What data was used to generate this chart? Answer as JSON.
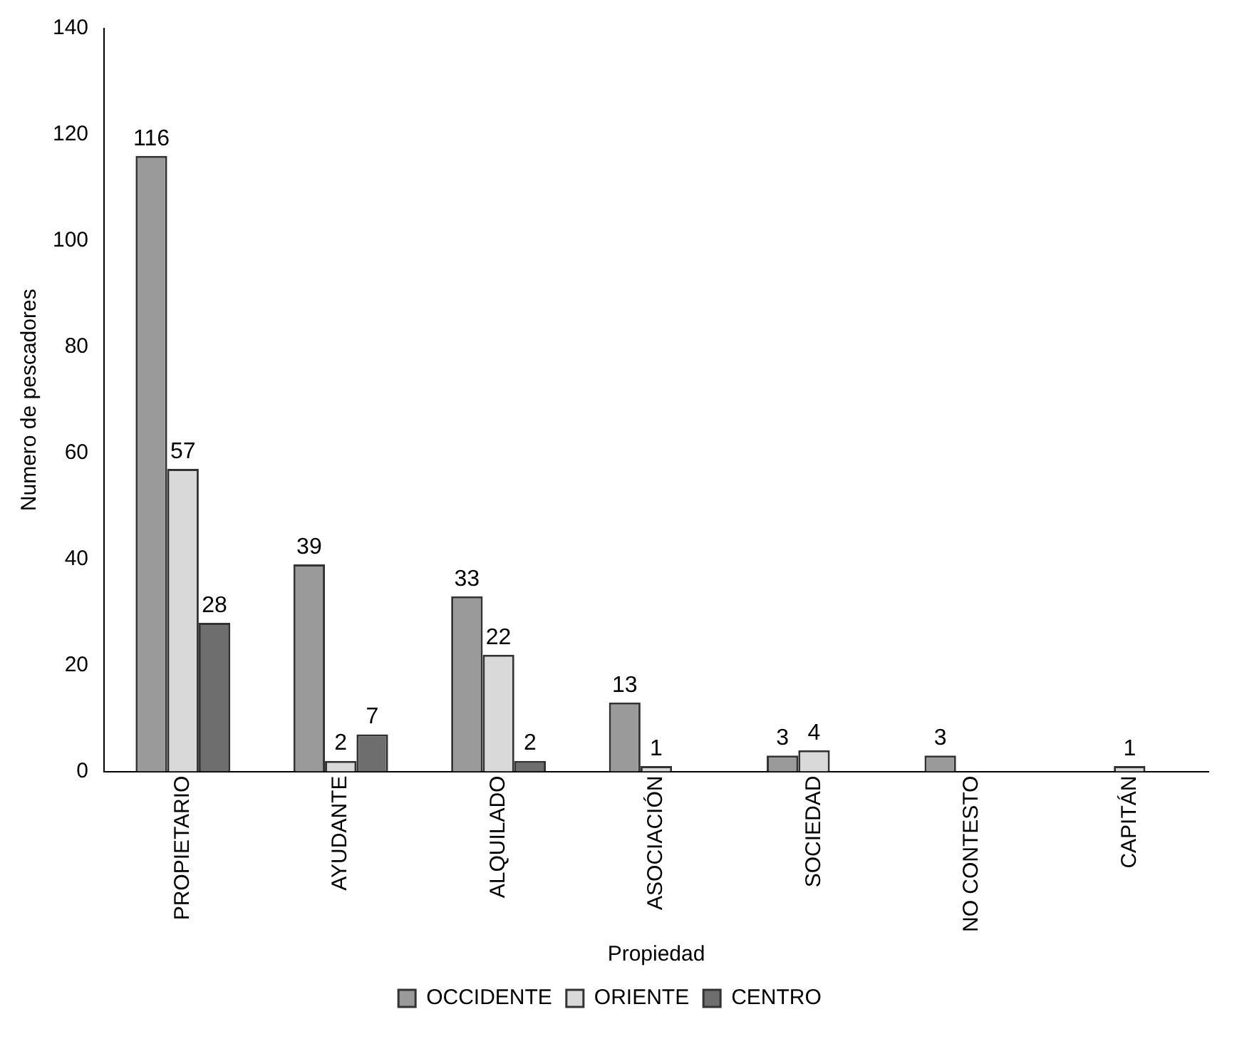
{
  "chart_data": {
    "type": "bar",
    "xlabel": "Propiedad",
    "ylabel": "Numero de pescadores",
    "categories": [
      "PROPIETARIO",
      "AYUDANTE",
      "ALQUILADO",
      "ASOCIACIÓN",
      "SOCIEDAD",
      "NO CONTESTO",
      "CAPITÁN"
    ],
    "series": [
      {
        "name": "OCCIDENTE",
        "color": "#9a9a9a",
        "values": [
          116,
          39,
          33,
          13,
          3,
          3,
          null
        ]
      },
      {
        "name": "ORIENTE",
        "color": "#d9d9d9",
        "values": [
          57,
          2,
          22,
          1,
          4,
          null,
          1
        ]
      },
      {
        "name": "CENTRO",
        "color": "#6e6e6e",
        "values": [
          28,
          7,
          2,
          null,
          null,
          null,
          null
        ]
      }
    ],
    "ylim": [
      0,
      140
    ],
    "yticks": [
      0,
      20,
      40,
      60,
      80,
      100,
      120,
      140
    ],
    "grid": false,
    "legend": "bottom",
    "data_labels": true
  }
}
